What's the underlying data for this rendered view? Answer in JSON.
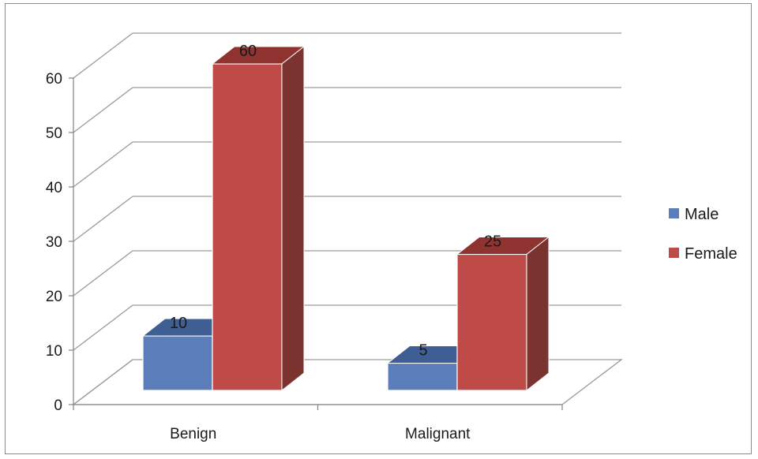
{
  "chart_data": {
    "type": "bar",
    "categories": [
      "Benign",
      "Malignant"
    ],
    "series": [
      {
        "name": "Male",
        "values": [
          10,
          5
        ],
        "color": "#5B7DBA",
        "top_color": "#3F5E94",
        "side_color": "#344F7C"
      },
      {
        "name": "Female",
        "values": [
          60,
          25
        ],
        "color": "#BE4B48",
        "top_color": "#8E3330",
        "side_color": "#7A332F"
      }
    ],
    "ylim": [
      0,
      60
    ],
    "yticks": [
      "0",
      "10",
      "20",
      "30",
      "40",
      "50",
      "60"
    ],
    "data_labels": [
      [
        "10",
        "5"
      ],
      [
        "60",
        "25"
      ]
    ],
    "grid": true,
    "legend": "right",
    "title": "",
    "xlabel": "",
    "ylabel": ""
  }
}
